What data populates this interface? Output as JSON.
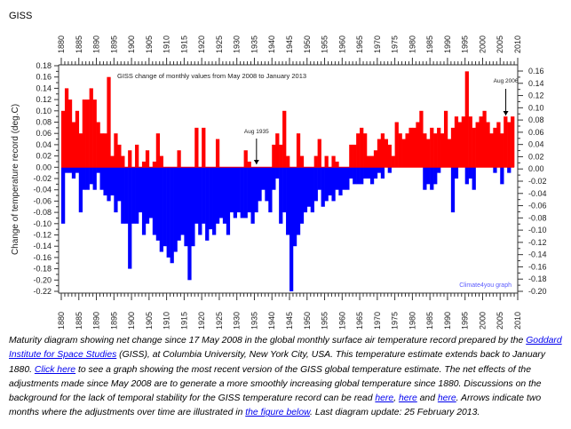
{
  "header": {
    "title": "GISS"
  },
  "chart_data": {
    "type": "bar",
    "title": "GISS change of monthly values from May 2008 to January 2013",
    "ylabel": "Change of temperature record (deg.C)",
    "xlabel": "",
    "xlim": [
      1880,
      2010
    ],
    "x_ticks": [
      1880,
      1885,
      1890,
      1895,
      1900,
      1905,
      1910,
      1915,
      1920,
      1925,
      1930,
      1935,
      1940,
      1945,
      1950,
      1955,
      1960,
      1965,
      1970,
      1975,
      1980,
      1985,
      1990,
      1995,
      2000,
      2005,
      2010
    ],
    "ylim_left": [
      -0.22,
      0.18
    ],
    "ylim_right": [
      -0.2,
      0.16
    ],
    "grid": false,
    "colors": {
      "positive": "#ff0000",
      "negative": "#0000ff",
      "credit": "#5a5aff"
    },
    "years": {
      "start": 1880,
      "end": 2008
    },
    "series": [
      {
        "values": [
          0.1,
          0.14,
          0.12,
          0.08,
          0.1,
          0.06,
          0.12,
          0.12,
          0.14,
          0.12,
          0.08,
          0.06,
          0.06,
          0.16,
          0.02,
          0.06,
          0.04,
          0.02,
          0,
          0.03,
          0,
          0.04,
          0,
          0.01,
          0.03,
          0,
          0.01,
          0.06,
          0.02,
          0,
          0,
          0,
          0,
          0.03,
          0,
          0,
          0,
          0,
          0.07,
          0,
          0.07,
          0,
          0,
          0,
          0.05,
          0,
          0,
          0,
          0,
          0,
          0,
          0,
          0.03,
          0.01,
          0,
          0,
          0,
          0,
          0,
          0,
          0.04,
          0.06,
          0.04,
          0.1,
          0.02,
          0,
          0,
          0.06,
          0.02,
          0,
          0,
          0,
          0.02,
          0.05,
          0,
          0.02,
          0,
          0.02,
          0.01,
          0,
          0,
          0,
          0.04,
          0.04,
          0.06,
          0.07,
          0.06,
          0.02,
          0.02,
          0.03,
          0.05,
          0.06,
          0.05,
          0.04,
          0.02,
          0.08,
          0.06,
          0.05,
          0.06,
          0.07,
          0.07,
          0.08,
          0.1,
          0.06,
          0.05,
          0.07,
          0.06,
          0.07,
          0.06,
          0.1,
          0.05,
          0.07,
          0.09,
          0.08,
          0.09,
          0.17,
          0.09,
          0.07,
          0.08,
          0.09,
          0.1,
          0.08,
          0.06,
          0.07,
          0.08,
          0.06,
          0.09,
          0.08,
          0.09
        ]
      },
      {
        "values": [
          -0.1,
          -0.01,
          -0.01,
          -0.02,
          -0.01,
          -0.08,
          -0.04,
          -0.04,
          -0.03,
          -0.04,
          -0.01,
          -0.04,
          -0.05,
          -0.06,
          -0.05,
          -0.08,
          -0.06,
          -0.1,
          -0.1,
          -0.18,
          -0.1,
          -0.1,
          -0.08,
          -0.12,
          -0.1,
          -0.09,
          -0.12,
          -0.13,
          -0.15,
          -0.14,
          -0.16,
          -0.17,
          -0.15,
          -0.13,
          -0.12,
          -0.14,
          -0.2,
          -0.14,
          -0.1,
          -0.12,
          -0.1,
          -0.13,
          -0.11,
          -0.12,
          -0.1,
          -0.09,
          -0.1,
          -0.12,
          -0.08,
          -0.09,
          -0.08,
          -0.09,
          -0.09,
          -0.08,
          -0.1,
          -0.08,
          -0.06,
          -0.04,
          -0.06,
          -0.08,
          -0.04,
          -0.02,
          -0.1,
          -0.08,
          -0.12,
          -0.22,
          -0.14,
          -0.12,
          -0.1,
          -0.08,
          -0.07,
          -0.08,
          -0.06,
          -0.04,
          -0.07,
          -0.06,
          -0.05,
          -0.06,
          -0.04,
          -0.05,
          -0.04,
          -0.04,
          -0.02,
          -0.03,
          -0.03,
          -0.03,
          -0.02,
          -0.02,
          -0.03,
          -0.02,
          -0.01,
          -0.02,
          0,
          -0.01,
          0,
          0,
          0,
          0,
          0,
          0,
          0,
          0,
          0,
          -0.04,
          -0.03,
          -0.04,
          -0.03,
          -0.01,
          0,
          0,
          0,
          -0.08,
          -0.02,
          0,
          0,
          -0.03,
          -0.02,
          -0.04,
          0,
          0,
          0,
          0,
          0,
          -0.01,
          0,
          -0.03,
          0,
          -0.01,
          0
        ]
      }
    ],
    "annotations": [
      {
        "text": "Aug 1935",
        "x": 1935.6
      },
      {
        "text": "Aug 2006",
        "x": 2006.6
      }
    ],
    "credit": "Climate4you graph"
  },
  "caption": {
    "t1": "Maturity diagram showing net change since 17 May 2008 in the global monthly surface air temperature record prepared by the ",
    "link1": "Goddard Institute for Space Studies",
    "t2": " (GISS), at Columbia University, New York City, USA. This temperature estimate extends back to January 1880. ",
    "link2": "Click here",
    "t3": " to see a graph showing the most recent version of the GISS global temperature estimate. The net effects of the adjustments made since May 2008 are to generate a more smoothly increasing global temperature since 1880. Discussions on the background for the lack of temporal stability for the GISS temperature record can be read ",
    "link3": "here",
    "t4": ", ",
    "link4": "here",
    "t5": " and ",
    "link5": "here",
    "t6": ".  Arrows indicate two months where the adjustments over time are illustrated in ",
    "link6": "the figure below",
    "t7": ". Last diagram update: 25 February 2013."
  }
}
